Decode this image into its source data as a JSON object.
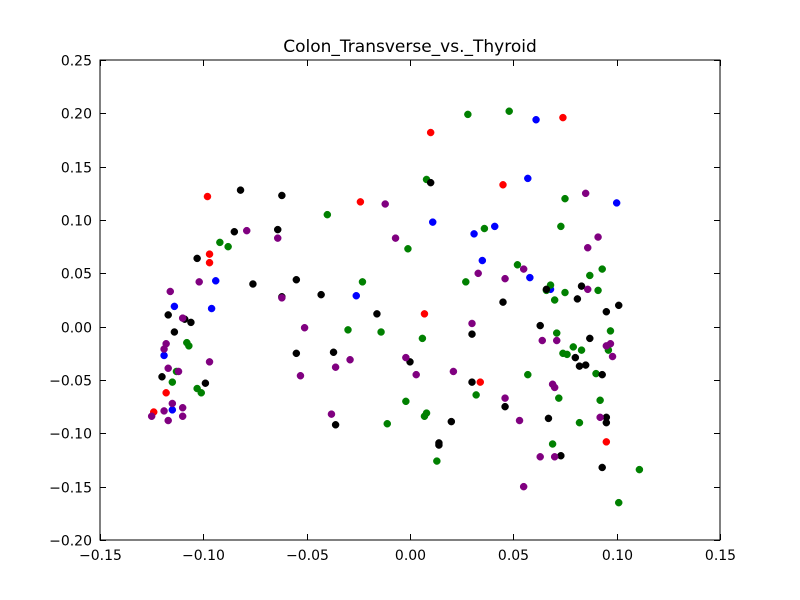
{
  "chart_data": {
    "type": "scatter",
    "title": "Colon_Transverse_vs._Thyroid",
    "xlabel": "",
    "ylabel": "",
    "xlim": [
      -0.15,
      0.15
    ],
    "ylim": [
      -0.2,
      0.25
    ],
    "x_ticks": [
      -0.15,
      -0.1,
      -0.05,
      0.0,
      0.05,
      0.1,
      0.15
    ],
    "y_ticks": [
      -0.2,
      -0.15,
      -0.1,
      -0.05,
      0.0,
      0.05,
      0.1,
      0.15,
      0.2,
      0.25
    ],
    "x_tick_labels": [
      "−0.15",
      "−0.10",
      "−0.05",
      "0.00",
      "0.05",
      "0.10",
      "0.15"
    ],
    "y_tick_labels": [
      "−0.20",
      "−0.15",
      "−0.10",
      "−0.05",
      "0.00",
      "0.05",
      "0.10",
      "0.15",
      "0.20",
      "0.25"
    ],
    "grid": false,
    "legend": "none",
    "series": [
      {
        "color": "#ff0000",
        "points": [
          [
            -0.124,
            -0.08
          ],
          [
            -0.118,
            -0.062
          ],
          [
            -0.097,
            0.068
          ],
          [
            -0.097,
            0.06
          ],
          [
            -0.098,
            0.122
          ],
          [
            -0.024,
            0.117
          ],
          [
            0.01,
            0.182
          ],
          [
            0.007,
            0.012
          ],
          [
            0.034,
            -0.052
          ],
          [
            0.045,
            0.133
          ],
          [
            0.074,
            0.196
          ],
          [
            0.095,
            -0.108
          ]
        ]
      },
      {
        "color": "#0000ff",
        "points": [
          [
            -0.119,
            -0.027
          ],
          [
            -0.115,
            -0.078
          ],
          [
            -0.114,
            0.019
          ],
          [
            -0.094,
            0.043
          ],
          [
            -0.096,
            0.017
          ],
          [
            -0.026,
            0.029
          ],
          [
            0.011,
            0.098
          ],
          [
            0.031,
            0.087
          ],
          [
            0.035,
            0.062
          ],
          [
            0.041,
            0.094
          ],
          [
            0.057,
            0.139
          ],
          [
            0.058,
            0.046
          ],
          [
            0.061,
            0.194
          ],
          [
            0.068,
            0.035
          ],
          [
            0.1,
            0.116
          ]
        ]
      },
      {
        "color": "#008000",
        "points": [
          [
            -0.115,
            -0.052
          ],
          [
            -0.113,
            -0.042
          ],
          [
            -0.108,
            -0.015
          ],
          [
            -0.107,
            -0.018
          ],
          [
            -0.103,
            -0.058
          ],
          [
            -0.101,
            -0.062
          ],
          [
            -0.092,
            0.079
          ],
          [
            -0.088,
            0.075
          ],
          [
            -0.04,
            0.105
          ],
          [
            -0.03,
            -0.003
          ],
          [
            -0.023,
            0.042
          ],
          [
            -0.014,
            -0.005
          ],
          [
            -0.011,
            -0.091
          ],
          [
            -0.002,
            -0.07
          ],
          [
            -0.001,
            0.073
          ],
          [
            0.006,
            -0.011
          ],
          [
            0.007,
            -0.084
          ],
          [
            0.008,
            -0.081
          ],
          [
            0.008,
            0.138
          ],
          [
            0.013,
            -0.126
          ],
          [
            0.027,
            0.042
          ],
          [
            0.028,
            0.199
          ],
          [
            0.032,
            -0.064
          ],
          [
            0.036,
            0.092
          ],
          [
            0.048,
            0.202
          ],
          [
            0.052,
            0.058
          ],
          [
            0.057,
            -0.045
          ],
          [
            0.066,
            0.034
          ],
          [
            0.068,
            0.039
          ],
          [
            0.069,
            -0.11
          ],
          [
            0.07,
            0.025
          ],
          [
            0.071,
            -0.006
          ],
          [
            0.072,
            -0.067
          ],
          [
            0.073,
            0.094
          ],
          [
            0.074,
            -0.025
          ],
          [
            0.075,
            0.12
          ],
          [
            0.075,
            0.032
          ],
          [
            0.076,
            -0.026
          ],
          [
            0.079,
            -0.019
          ],
          [
            0.082,
            -0.09
          ],
          [
            0.083,
            -0.022
          ],
          [
            0.087,
            0.048
          ],
          [
            0.09,
            -0.044
          ],
          [
            0.091,
            0.034
          ],
          [
            0.092,
            -0.069
          ],
          [
            0.093,
            0.054
          ],
          [
            0.096,
            -0.022
          ],
          [
            0.097,
            -0.004
          ],
          [
            0.101,
            -0.165
          ],
          [
            0.111,
            -0.134
          ]
        ]
      },
      {
        "color": "#000000",
        "points": [
          [
            -0.12,
            -0.047
          ],
          [
            -0.117,
            0.011
          ],
          [
            -0.114,
            -0.005
          ],
          [
            -0.109,
            0.007
          ],
          [
            -0.106,
            0.004
          ],
          [
            -0.103,
            0.064
          ],
          [
            -0.099,
            -0.053
          ],
          [
            -0.085,
            0.089
          ],
          [
            -0.082,
            0.128
          ],
          [
            -0.076,
            0.04
          ],
          [
            -0.064,
            0.091
          ],
          [
            -0.062,
            0.123
          ],
          [
            -0.062,
            0.028
          ],
          [
            -0.055,
            0.044
          ],
          [
            -0.055,
            -0.025
          ],
          [
            -0.043,
            0.03
          ],
          [
            -0.037,
            -0.024
          ],
          [
            -0.036,
            -0.092
          ],
          [
            -0.016,
            0.012
          ],
          [
            0.0,
            -0.033
          ],
          [
            0.01,
            0.135
          ],
          [
            0.014,
            -0.109
          ],
          [
            0.014,
            -0.111
          ],
          [
            0.02,
            -0.089
          ],
          [
            0.03,
            -0.007
          ],
          [
            0.03,
            -0.052
          ],
          [
            0.046,
            -0.075
          ],
          [
            0.045,
            0.023
          ],
          [
            0.063,
            0.001
          ],
          [
            0.066,
            0.035
          ],
          [
            0.067,
            -0.086
          ],
          [
            0.073,
            -0.121
          ],
          [
            0.08,
            -0.029
          ],
          [
            0.081,
            0.026
          ],
          [
            0.082,
            -0.037
          ],
          [
            0.083,
            0.038
          ],
          [
            0.085,
            -0.036
          ],
          [
            0.087,
            -0.011
          ],
          [
            0.093,
            -0.045
          ],
          [
            0.093,
            -0.132
          ],
          [
            0.095,
            -0.085
          ],
          [
            0.095,
            -0.09
          ],
          [
            0.095,
            0.014
          ],
          [
            0.101,
            0.02
          ]
        ]
      },
      {
        "color": "#800080",
        "points": [
          [
            -0.125,
            -0.084
          ],
          [
            -0.119,
            -0.079
          ],
          [
            -0.119,
            -0.021
          ],
          [
            -0.118,
            -0.016
          ],
          [
            -0.117,
            -0.088
          ],
          [
            -0.117,
            -0.039
          ],
          [
            -0.116,
            0.033
          ],
          [
            -0.115,
            -0.072
          ],
          [
            -0.112,
            -0.042
          ],
          [
            -0.11,
            -0.084
          ],
          [
            -0.11,
            -0.076
          ],
          [
            -0.11,
            0.008
          ],
          [
            -0.102,
            0.042
          ],
          [
            -0.097,
            -0.033
          ],
          [
            -0.079,
            0.09
          ],
          [
            -0.064,
            0.083
          ],
          [
            -0.062,
            0.027
          ],
          [
            -0.053,
            -0.046
          ],
          [
            -0.051,
            -0.001
          ],
          [
            -0.038,
            -0.082
          ],
          [
            -0.036,
            -0.038
          ],
          [
            -0.029,
            -0.031
          ],
          [
            -0.012,
            0.115
          ],
          [
            -0.007,
            0.083
          ],
          [
            -0.002,
            -0.029
          ],
          [
            0.003,
            -0.045
          ],
          [
            0.021,
            -0.042
          ],
          [
            0.03,
            0.003
          ],
          [
            0.033,
            0.05
          ],
          [
            0.046,
            -0.067
          ],
          [
            0.046,
            0.045
          ],
          [
            0.053,
            -0.088
          ],
          [
            0.055,
            0.054
          ],
          [
            0.055,
            -0.15
          ],
          [
            0.063,
            -0.122
          ],
          [
            0.064,
            -0.013
          ],
          [
            0.069,
            -0.054
          ],
          [
            0.07,
            -0.057
          ],
          [
            0.071,
            -0.013
          ],
          [
            0.07,
            -0.122
          ],
          [
            0.085,
            0.125
          ],
          [
            0.086,
            0.074
          ],
          [
            0.086,
            0.035
          ],
          [
            0.091,
            0.084
          ],
          [
            0.092,
            -0.085
          ],
          [
            0.095,
            -0.018
          ],
          [
            0.097,
            -0.016
          ],
          [
            0.098,
            -0.028
          ]
        ]
      }
    ]
  }
}
